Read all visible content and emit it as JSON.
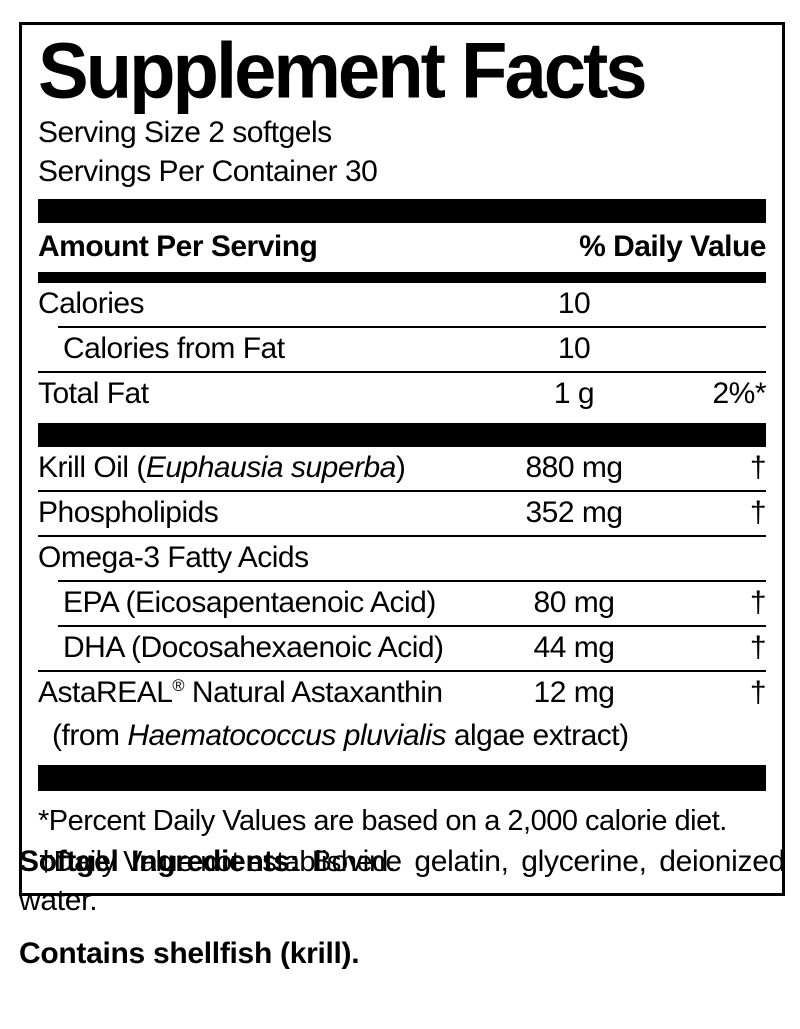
{
  "colors": {
    "text": "#000000",
    "background": "#ffffff",
    "bars": "#000000"
  },
  "supplement_facts": {
    "title": "Supplement Facts",
    "serving_size": "Serving Size 2 softgels",
    "servings_per_container": "Servings Per Container 30",
    "column_headers": {
      "amount_per_serving": "Amount Per Serving",
      "percent_daily_value": "% Daily Value"
    },
    "rows": [
      {
        "name": "Calories",
        "amount": "10",
        "dv": ""
      },
      {
        "name": "Calories from Fat",
        "amount": "10",
        "dv": ""
      },
      {
        "name": "Total Fat",
        "amount": "1 g",
        "dv": "2%*"
      },
      {
        "name_pre": "Krill Oil (",
        "name_italic": "Euphausia superba",
        "name_post": ")",
        "amount": "880 mg",
        "dv": "†"
      },
      {
        "name": "Phospholipids",
        "amount": "352 mg",
        "dv": "†"
      },
      {
        "name": "Omega-3 Fatty Acids",
        "amount": "",
        "dv": ""
      },
      {
        "name": "EPA (Eicosapentaenoic Acid)",
        "amount": "80 mg",
        "dv": "†"
      },
      {
        "name": "DHA (Docosahexaenoic Acid)",
        "amount": "44 mg",
        "dv": "†"
      },
      {
        "name_pre": "AstaREAL",
        "name_sup": "®",
        "name_post": " Natural Astaxanthin",
        "amount": "12 mg",
        "dv": "†"
      },
      {
        "name_pre": "(from ",
        "name_italic": "Haematococcus pluvialis",
        "name_post": " algae extract)",
        "amount": "",
        "dv": ""
      }
    ],
    "footnotes": {
      "percent": "*Percent Daily Values are based on a 2,000 calorie diet.",
      "dagger": "†Daily Value not established."
    }
  },
  "other_ingredients": {
    "softgel_label": "Softgel Ingredients:",
    "softgel_text": " Bovine gelatin, glycerine, deionized water.",
    "contains": "Contains shellfish (krill)."
  }
}
